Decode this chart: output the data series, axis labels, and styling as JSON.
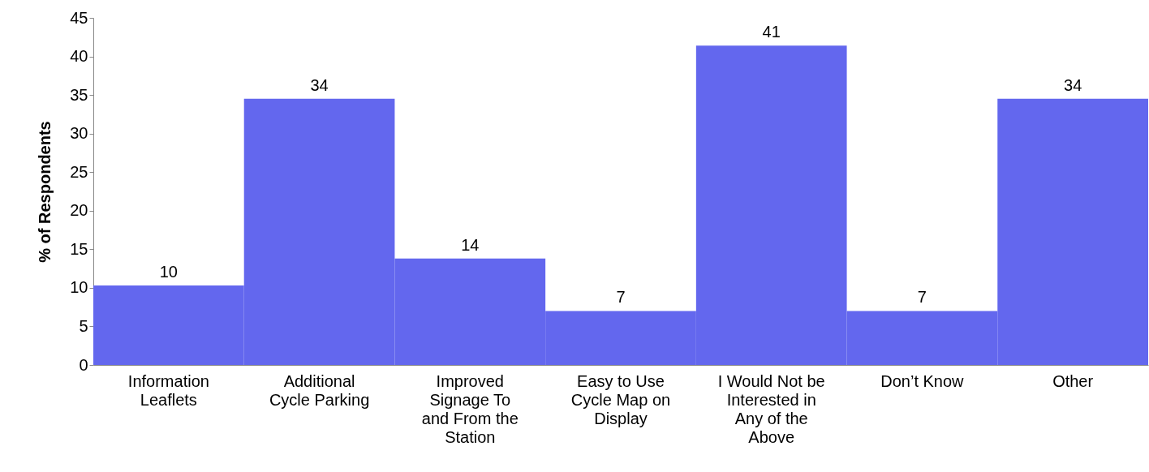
{
  "chart_data": {
    "type": "bar",
    "ylabel": "% of Respondents",
    "categories": [
      "Information Leaflets",
      "Additional Cycle Parking",
      "Improved Signage To and From the Station",
      "Easy to Use Cycle Map on Display",
      "I Would Not be Interested in Any of the Above",
      "Don’t Know",
      "Other"
    ],
    "values": [
      10.3,
      34.5,
      13.8,
      7,
      41.4,
      7,
      34.5
    ],
    "value_labels": [
      "10",
      "34",
      "14",
      "7",
      "41",
      "7",
      "34"
    ],
    "color": "#6367ee",
    "ylim": [
      0,
      45
    ],
    "yticks": [
      0,
      5,
      10,
      15,
      20,
      25,
      30,
      35,
      40,
      45
    ],
    "grid": false
  }
}
